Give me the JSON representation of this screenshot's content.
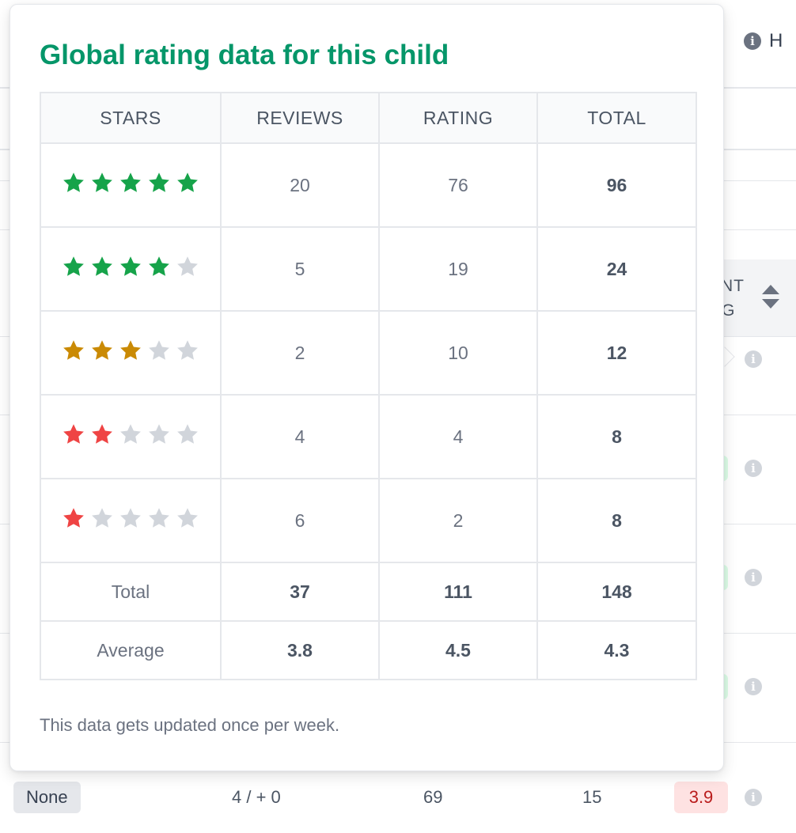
{
  "colors": {
    "title_green": "#059669",
    "star_green": "#16a34a",
    "star_amber": "#ca8a04",
    "star_red": "#ef4444",
    "star_empty": "#d1d5db"
  },
  "popover": {
    "title": "Global rating data for this child",
    "columns": [
      "STARS",
      "REVIEWS",
      "RATING",
      "TOTAL"
    ],
    "rows": [
      {
        "stars_filled": 5,
        "star_color": "green",
        "reviews": "20",
        "rating": "76",
        "total": "96"
      },
      {
        "stars_filled": 4,
        "star_color": "green",
        "reviews": "5",
        "rating": "19",
        "total": "24"
      },
      {
        "stars_filled": 3,
        "star_color": "amber",
        "reviews": "2",
        "rating": "10",
        "total": "12"
      },
      {
        "stars_filled": 2,
        "star_color": "red",
        "reviews": "4",
        "rating": "4",
        "total": "8"
      },
      {
        "stars_filled": 1,
        "star_color": "red",
        "reviews": "6",
        "rating": "2",
        "total": "8"
      }
    ],
    "summary": [
      {
        "label": "Total",
        "reviews": "37",
        "rating": "111",
        "total": "148"
      },
      {
        "label": "Average",
        "reviews": "3.8",
        "rating": "4.5",
        "total": "4.3"
      }
    ],
    "footnote": "This data gets updated once per week."
  },
  "background": {
    "help_label": "H",
    "column_header": [
      "ENT",
      "NG"
    ],
    "bottom_row": {
      "badge": "None",
      "col1": "4 / + 0",
      "col2": "69",
      "col3": "15",
      "score": "3.9"
    }
  }
}
